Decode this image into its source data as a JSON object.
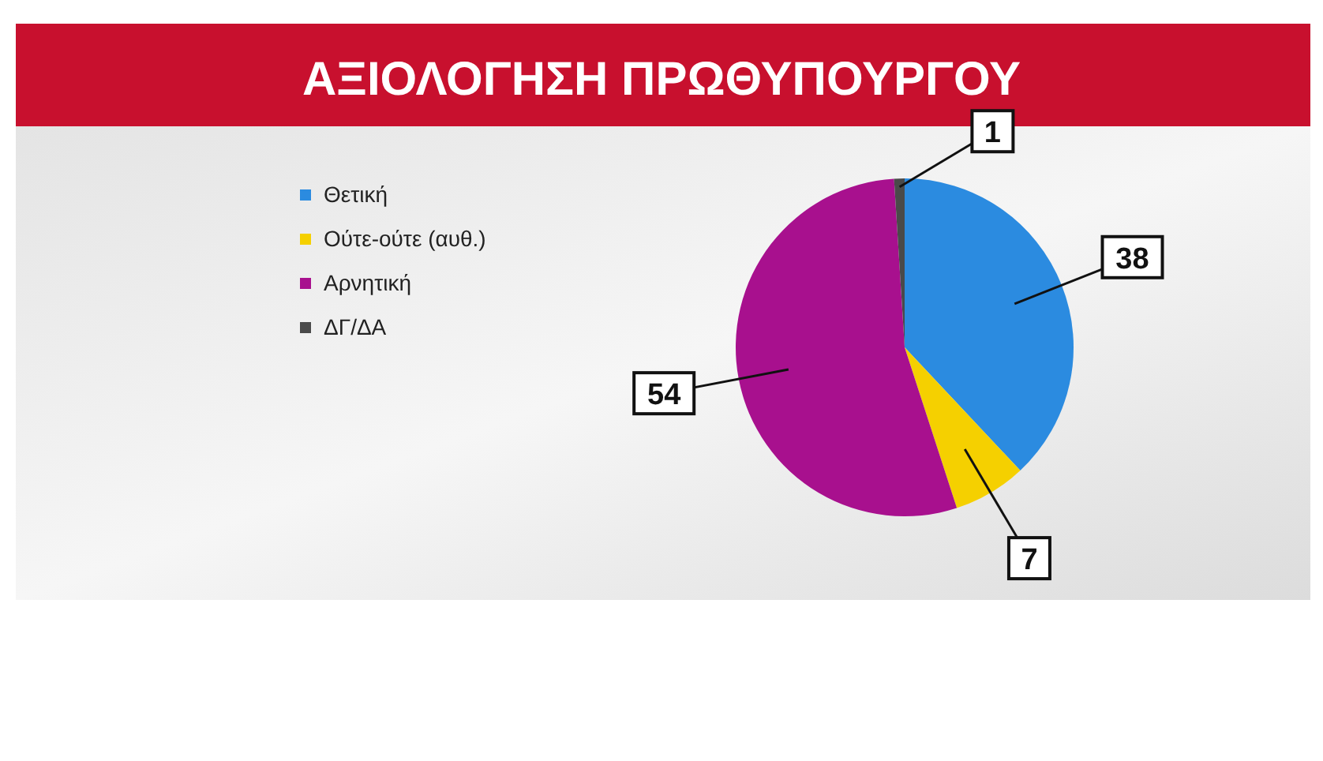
{
  "chart_data": {
    "type": "pie",
    "title": "ΑΞΙΟΛΟΓΗΣΗ ΠΡΩΘΥΠΟΥΡΓΟΥ",
    "categories": [
      "Θετική",
      "Ούτε-ούτε (αυθ.)",
      "Αρνητική",
      "ΔΓ/ΔΑ"
    ],
    "values": [
      38,
      7,
      54,
      1
    ],
    "colors": [
      "#2b8be0",
      "#f5d000",
      "#a8108e",
      "#4a4a4a"
    ],
    "data_labels": true,
    "legend": "top left"
  }
}
